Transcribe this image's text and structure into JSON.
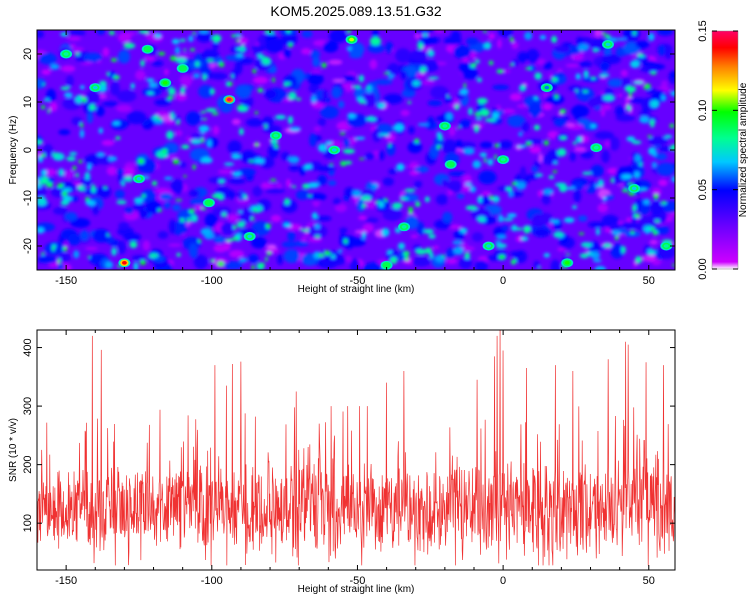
{
  "title": "KOM5.2025.089.13.51.G32",
  "chart_data": [
    {
      "type": "heatmap",
      "xlabel": "Height of straight line (km)",
      "ylabel": "Frequency (Hz)",
      "xlim": [
        -160,
        59
      ],
      "ylim": [
        -25,
        25
      ],
      "x_ticks": [
        -150,
        -100,
        -50,
        0,
        50
      ],
      "y_ticks": [
        -20,
        -10,
        0,
        10,
        20
      ],
      "colorbar": {
        "label": "Normalized spectral amplitude",
        "range": [
          0,
          0.15
        ],
        "ticks": [
          "0.00",
          "0.05",
          "0.10",
          "0.15"
        ],
        "colors": [
          "#ffffff",
          "#cc00ff",
          "#6a00ff",
          "#0000ff",
          "#00c8ff",
          "#00ff90",
          "#00ff00",
          "#ffff00",
          "#ff8000",
          "#ff0000",
          "#ff0066"
        ]
      },
      "hotspots": [
        {
          "x": -94,
          "y": 10.5,
          "value": 0.15
        },
        {
          "x": -130,
          "y": -23.5,
          "value": 0.14
        },
        {
          "x": -52,
          "y": 23,
          "value": 0.11
        },
        {
          "x": -116,
          "y": 14,
          "value": 0.1
        },
        {
          "x": -122,
          "y": 21,
          "value": 0.09
        },
        {
          "x": -18,
          "y": -3,
          "value": 0.09
        },
        {
          "x": 22,
          "y": -23.5,
          "value": 0.1
        },
        {
          "x": -110,
          "y": 17,
          "value": 0.09
        },
        {
          "x": -150,
          "y": 20,
          "value": 0.08
        },
        {
          "x": -101,
          "y": -11,
          "value": 0.09
        },
        {
          "x": -34,
          "y": -16,
          "value": 0.08
        },
        {
          "x": 56,
          "y": -20,
          "value": 0.08
        },
        {
          "x": -78,
          "y": 3,
          "value": 0.08
        },
        {
          "x": -140,
          "y": 13,
          "value": 0.07
        },
        {
          "x": -20,
          "y": 5,
          "value": 0.08
        },
        {
          "x": 0,
          "y": -2,
          "value": 0.08
        },
        {
          "x": 32,
          "y": 0.5,
          "value": 0.08
        },
        {
          "x": -40,
          "y": -24,
          "value": 0.09
        },
        {
          "x": 36,
          "y": 22,
          "value": 0.07
        },
        {
          "x": -58,
          "y": 0,
          "value": 0.07
        },
        {
          "x": -5,
          "y": -20,
          "value": 0.07
        },
        {
          "x": 45,
          "y": -8,
          "value": 0.07
        },
        {
          "x": -125,
          "y": -6,
          "value": 0.07
        },
        {
          "x": -87,
          "y": -18,
          "value": 0.07
        },
        {
          "x": 15,
          "y": 13,
          "value": 0.06
        }
      ]
    },
    {
      "type": "line",
      "xlabel": "Height of straight line (km)",
      "ylabel": "SNR (10 * v/v)",
      "xlim": [
        -160,
        59
      ],
      "ylim": [
        20,
        430
      ],
      "x_ticks": [
        -150,
        -100,
        -50,
        0,
        50
      ],
      "y_ticks": [
        100,
        200,
        300,
        400
      ],
      "color": "#f03232",
      "baseline": 125,
      "peaks": [
        {
          "x": -141,
          "y": 420
        },
        {
          "x": -138,
          "y": 396
        },
        {
          "x": -99,
          "y": 370
        },
        {
          "x": -93,
          "y": 372
        },
        {
          "x": -90,
          "y": 376
        },
        {
          "x": -95,
          "y": 335
        },
        {
          "x": -71,
          "y": 325
        },
        {
          "x": -40,
          "y": 340
        },
        {
          "x": -34,
          "y": 360
        },
        {
          "x": -9,
          "y": 345
        },
        {
          "x": -3,
          "y": 385
        },
        {
          "x": -2,
          "y": 420
        },
        {
          "x": -1,
          "y": 432
        },
        {
          "x": 0,
          "y": 395
        },
        {
          "x": 8,
          "y": 365
        },
        {
          "x": 18,
          "y": 370
        },
        {
          "x": 24,
          "y": 360
        },
        {
          "x": 36,
          "y": 380
        },
        {
          "x": 42,
          "y": 410
        },
        {
          "x": 43,
          "y": 405
        },
        {
          "x": 49,
          "y": 375
        },
        {
          "x": 55,
          "y": 370
        }
      ]
    }
  ]
}
